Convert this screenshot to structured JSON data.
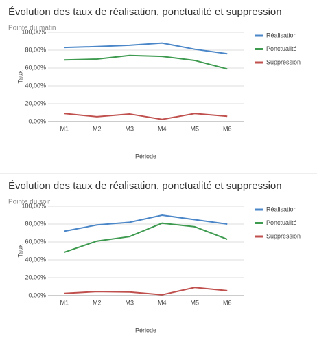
{
  "chart_data": [
    {
      "type": "line",
      "title": "Évolution des taux de réalisation, ponctualité et suppression",
      "subtitle": "Pointe du matin",
      "x_label": "Période",
      "y_label": "Taux",
      "categories": [
        "M1",
        "M2",
        "M3",
        "M4",
        "M5",
        "M6"
      ],
      "series": [
        {
          "name": "Réalisation",
          "color": "#4a86c8",
          "values": [
            83,
            84,
            85.5,
            88,
            81,
            76
          ]
        },
        {
          "name": "Ponctualité",
          "color": "#3d9a4f",
          "values": [
            69,
            70,
            74,
            73,
            68.5,
            59
          ]
        },
        {
          "name": "Suppression",
          "color": "#c0504d",
          "values": [
            9,
            5.5,
            8.5,
            2.5,
            9,
            6
          ]
        }
      ],
      "ylim": [
        0,
        100
      ],
      "yticks": [
        {
          "value": 0,
          "label": "0,00%"
        },
        {
          "value": 20,
          "label": "20,00%"
        },
        {
          "value": 40,
          "label": "40,00%"
        },
        {
          "value": 60,
          "label": "60,00%"
        },
        {
          "value": 80,
          "label": "80,00%"
        },
        {
          "value": 100,
          "label": "100,00%"
        }
      ],
      "grid": true,
      "legend": "right"
    },
    {
      "type": "line",
      "title": "Évolution des taux de réalisation, ponctualité et suppression",
      "subtitle": "Pointe du soir",
      "x_label": "Période",
      "y_label": "Taux",
      "categories": [
        "M1",
        "M2",
        "M3",
        "M4",
        "M5",
        "M6"
      ],
      "series": [
        {
          "name": "Réalisation",
          "color": "#4a86c8",
          "values": [
            72,
            79,
            82,
            90,
            85,
            80
          ]
        },
        {
          "name": "Ponctualité",
          "color": "#3d9a4f",
          "values": [
            48.5,
            61,
            66,
            81,
            77,
            63
          ]
        },
        {
          "name": "Suppression",
          "color": "#c0504d",
          "values": [
            2.5,
            4.5,
            4,
            1,
            9,
            5.5
          ]
        }
      ],
      "ylim": [
        0,
        100
      ],
      "yticks": [
        {
          "value": 0,
          "label": "0,00%"
        },
        {
          "value": 20,
          "label": "20,00%"
        },
        {
          "value": 40,
          "label": "40,00%"
        },
        {
          "value": 60,
          "label": "60,00%"
        },
        {
          "value": 80,
          "label": "80,00%"
        },
        {
          "value": 100,
          "label": "100,00%"
        }
      ],
      "grid": true,
      "legend": "right"
    }
  ]
}
